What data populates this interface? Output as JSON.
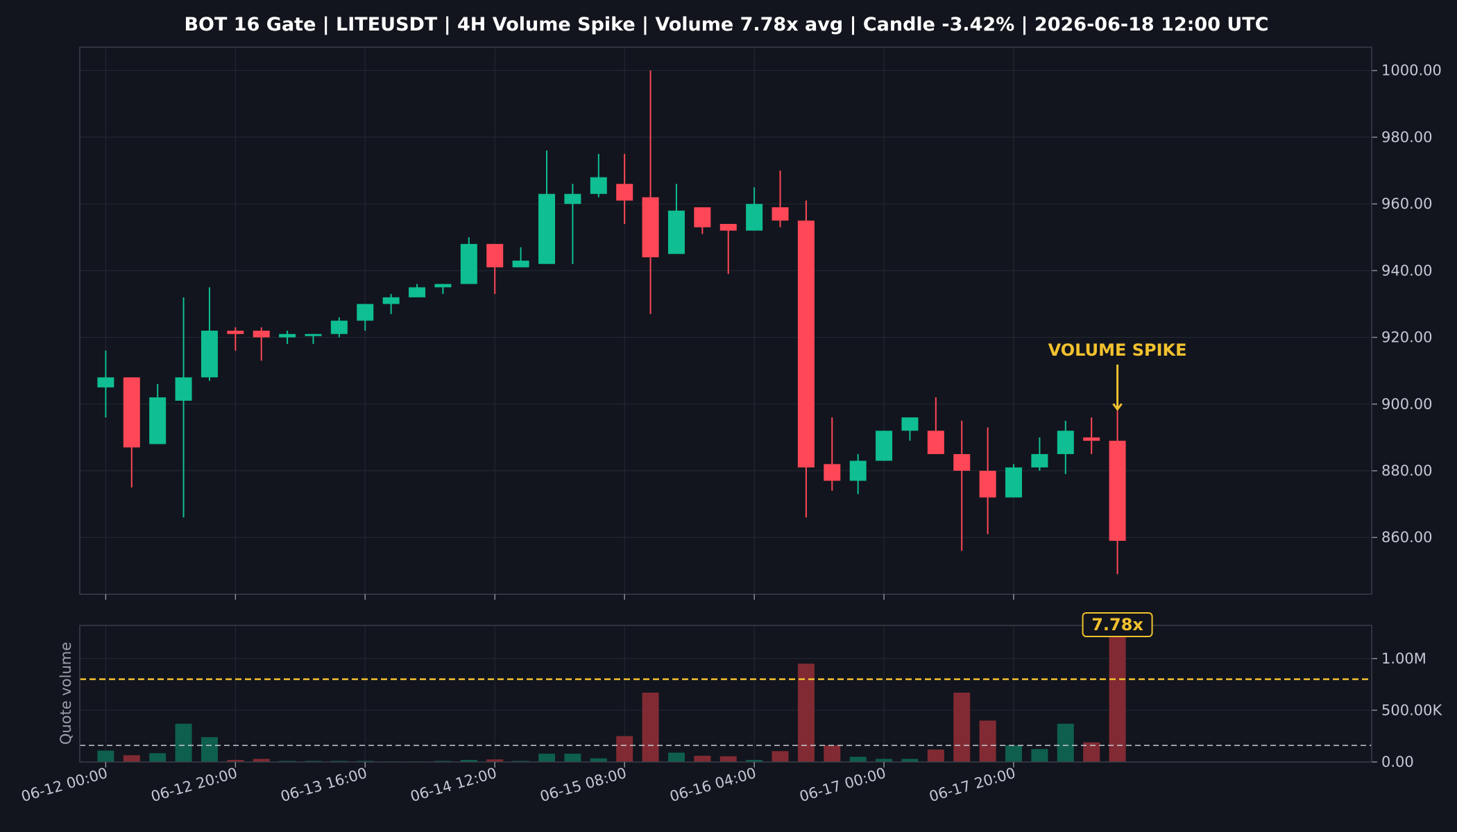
{
  "colors": {
    "background": "#12151d",
    "up": "#0fbe93",
    "down": "#ff4757",
    "up_volume": "#0e5f4c",
    "down_volume": "#812a33",
    "grid": "#252a35",
    "frame": "#3a3f4b",
    "accent": "#f2c12e",
    "avg_line": "#c8ccd4"
  },
  "chart_data": {
    "type": "candlestick",
    "title": "BOT 16 Gate | LITEUSDT | 4H Volume Spike | Volume 7.78x avg | Candle -3.42% | 2026-06-18 12:00 UTC",
    "price_ylim": [
      843,
      1007
    ],
    "price_ticks": [
      860,
      880,
      900,
      920,
      940,
      960,
      980,
      1000
    ],
    "price_tick_labels": [
      "860.00",
      "880.00",
      "900.00",
      "920.00",
      "940.00",
      "960.00",
      "980.00",
      "1000.00"
    ],
    "x_tick_indices": [
      0,
      5,
      10,
      15,
      20,
      25,
      30,
      35
    ],
    "x_tick_labels": [
      "06-12 00:00",
      "06-12 20:00",
      "06-13 16:00",
      "06-14 12:00",
      "06-15 08:00",
      "06-16 04:00",
      "06-17 00:00",
      "06-17 20:00"
    ],
    "x_range": [
      -1,
      48.8
    ],
    "candles": [
      {
        "o": 905,
        "h": 916,
        "l": 896,
        "c": 908
      },
      {
        "o": 908,
        "h": 908,
        "l": 875,
        "c": 887
      },
      {
        "o": 888,
        "h": 906,
        "l": 888,
        "c": 902
      },
      {
        "o": 901,
        "h": 932,
        "l": 866,
        "c": 908
      },
      {
        "o": 908,
        "h": 935,
        "l": 907,
        "c": 922
      },
      {
        "o": 922,
        "h": 923,
        "l": 916,
        "c": 921
      },
      {
        "o": 922,
        "h": 923,
        "l": 913,
        "c": 920
      },
      {
        "o": 920,
        "h": 922,
        "l": 918,
        "c": 921
      },
      {
        "o": 921,
        "h": 921,
        "l": 918,
        "c": 921
      },
      {
        "o": 921,
        "h": 926,
        "l": 920,
        "c": 925
      },
      {
        "o": 925,
        "h": 930,
        "l": 922,
        "c": 930
      },
      {
        "o": 930,
        "h": 933,
        "l": 927,
        "c": 932
      },
      {
        "o": 932,
        "h": 936,
        "l": 932,
        "c": 935
      },
      {
        "o": 935,
        "h": 936,
        "l": 933,
        "c": 936
      },
      {
        "o": 936,
        "h": 950,
        "l": 936,
        "c": 948
      },
      {
        "o": 948,
        "h": 948,
        "l": 933,
        "c": 941
      },
      {
        "o": 941,
        "h": 947,
        "l": 941,
        "c": 943
      },
      {
        "o": 942,
        "h": 976,
        "l": 942,
        "c": 963
      },
      {
        "o": 960,
        "h": 966,
        "l": 942,
        "c": 963
      },
      {
        "o": 963,
        "h": 975,
        "l": 962,
        "c": 968
      },
      {
        "o": 966,
        "h": 975,
        "l": 954,
        "c": 961
      },
      {
        "o": 962,
        "h": 1000,
        "l": 927,
        "c": 944
      },
      {
        "o": 945,
        "h": 966,
        "l": 945,
        "c": 958
      },
      {
        "o": 959,
        "h": 959,
        "l": 951,
        "c": 953
      },
      {
        "o": 954,
        "h": 954,
        "l": 939,
        "c": 952
      },
      {
        "o": 952,
        "h": 965,
        "l": 952,
        "c": 960
      },
      {
        "o": 959,
        "h": 970,
        "l": 953,
        "c": 955
      },
      {
        "o": 955,
        "h": 961,
        "l": 866,
        "c": 881
      },
      {
        "o": 882,
        "h": 896,
        "l": 874,
        "c": 877
      },
      {
        "o": 877,
        "h": 885,
        "l": 873,
        "c": 883
      },
      {
        "o": 883,
        "h": 892,
        "l": 883,
        "c": 892
      },
      {
        "o": 892,
        "h": 896,
        "l": 889,
        "c": 896
      },
      {
        "o": 892,
        "h": 902,
        "l": 885,
        "c": 885
      },
      {
        "o": 885,
        "h": 895,
        "l": 856,
        "c": 880
      },
      {
        "o": 880,
        "h": 893,
        "l": 861,
        "c": 872
      },
      {
        "o": 872,
        "h": 882,
        "l": 872,
        "c": 881
      },
      {
        "o": 881,
        "h": 890,
        "l": 880,
        "c": 885
      },
      {
        "o": 885,
        "h": 895,
        "l": 879,
        "c": 892
      },
      {
        "o": 890,
        "h": 896,
        "l": 885,
        "c": 889
      },
      {
        "o": 889,
        "h": 898,
        "l": 849,
        "c": 859
      }
    ],
    "volume_ylabel": "Quote volume",
    "volume_ylim": [
      0,
      1320000
    ],
    "volume_ticks": [
      0,
      500000,
      1000000
    ],
    "volume_tick_labels": [
      "0.00",
      "500.00K",
      "1.00M"
    ],
    "volumes": [
      110000,
      65000,
      85000,
      370000,
      240000,
      20000,
      30000,
      10000,
      10000,
      10000,
      10000,
      5000,
      5000,
      10000,
      20000,
      25000,
      10000,
      80000,
      80000,
      35000,
      250000,
      670000,
      90000,
      60000,
      55000,
      20000,
      105000,
      950000,
      160000,
      50000,
      30000,
      30000,
      120000,
      670000,
      400000,
      160000,
      125000,
      370000,
      190000,
      1240000
    ],
    "avg_volume": 160000,
    "spike_threshold": 800000,
    "annotation_text": "VOLUME SPIKE",
    "badge_text": "7.78x",
    "spike_index": 39,
    "annotation_price": 916
  }
}
